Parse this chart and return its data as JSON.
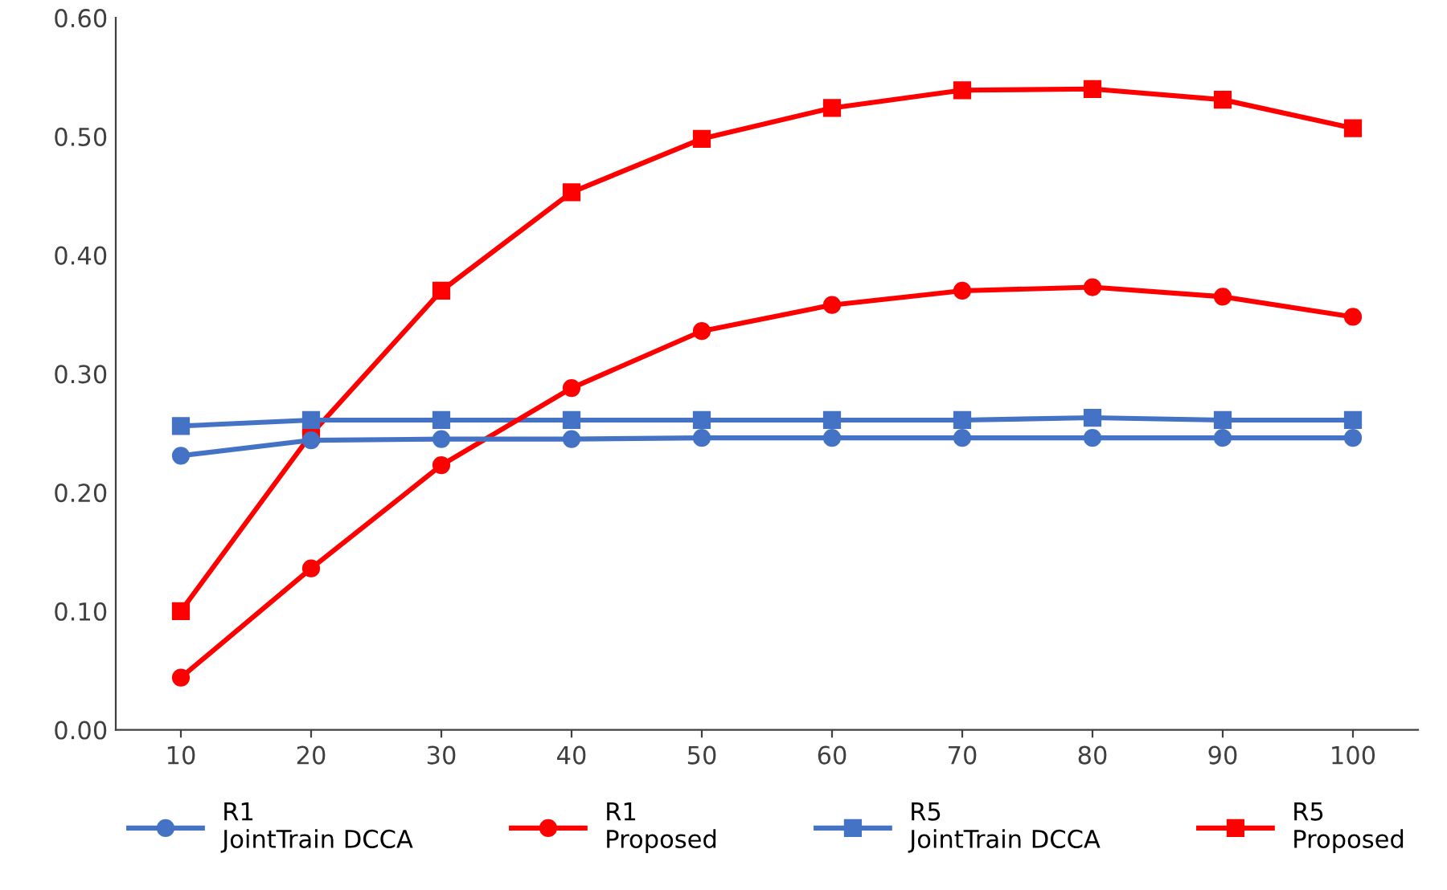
{
  "chart_data": {
    "type": "line",
    "categories": [
      "10",
      "20",
      "30",
      "40",
      "50",
      "60",
      "70",
      "80",
      "90",
      "100"
    ],
    "series": [
      {
        "name": "R1\nJointTrain DCCA",
        "color": "#4472c4",
        "marker": "circle",
        "values": [
          0.231,
          0.244,
          0.245,
          0.245,
          0.246,
          0.246,
          0.246,
          0.246,
          0.246,
          0.246
        ]
      },
      {
        "name": "R1\nProposed",
        "color": "#ff0000",
        "marker": "circle",
        "values": [
          0.044,
          0.136,
          0.223,
          0.288,
          0.336,
          0.358,
          0.37,
          0.373,
          0.365,
          0.348
        ]
      },
      {
        "name": "R5\nJointTrain DCCA",
        "color": "#4472c4",
        "marker": "square",
        "values": [
          0.256,
          0.261,
          0.261,
          0.261,
          0.261,
          0.261,
          0.261,
          0.263,
          0.261,
          0.261
        ]
      },
      {
        "name": "R5\nProposed",
        "color": "#ff0000",
        "marker": "square",
        "values": [
          0.1,
          0.249,
          0.37,
          0.453,
          0.498,
          0.524,
          0.539,
          0.54,
          0.531,
          0.507
        ]
      }
    ],
    "ylim": [
      0,
      0.6
    ],
    "yticks": [
      {
        "value": 0,
        "label": "0.00"
      },
      {
        "value": 0.1,
        "label": "0.10"
      },
      {
        "value": 0.2,
        "label": "0.20"
      },
      {
        "value": 0.3,
        "label": "0.30"
      },
      {
        "value": 0.4,
        "label": "0.40"
      },
      {
        "value": 0.5,
        "label": "0.50"
      },
      {
        "value": 0.6,
        "label": "0.60"
      }
    ],
    "grid": false,
    "legend": "bottom",
    "line_style": "solid"
  }
}
